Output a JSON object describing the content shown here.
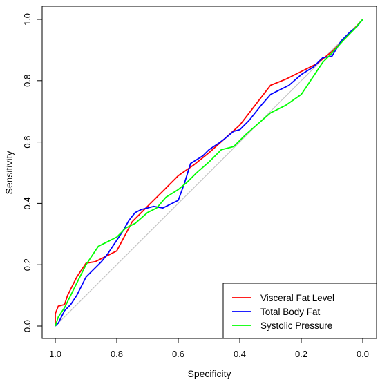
{
  "chart_data": {
    "type": "line",
    "title": "",
    "xlabel": "Specificity",
    "ylabel": "Sensitivity",
    "xlim": [
      1.0,
      0.0
    ],
    "ylim": [
      0.0,
      1.0
    ],
    "x_reversed": true,
    "x_ticks": [
      1.0,
      0.8,
      0.6,
      0.4,
      0.2,
      0.0
    ],
    "x_tick_labels": [
      "1.0",
      "0.8",
      "0.6",
      "0.4",
      "0.2",
      "0.0"
    ],
    "y_ticks": [
      0.0,
      0.2,
      0.4,
      0.6,
      0.8,
      1.0
    ],
    "y_tick_labels": [
      "0.0",
      "0.2",
      "0.4",
      "0.6",
      "0.8",
      "1.0"
    ],
    "grid": false,
    "legend_position": "bottom-right",
    "reference_line": {
      "from": [
        1.0,
        0.0
      ],
      "to": [
        0.0,
        1.0
      ],
      "color": "#bebebe"
    },
    "series": [
      {
        "name": "Visceral Fat Level",
        "color": "#ff0000",
        "points": [
          [
            1.0,
            0.0
          ],
          [
            1.0,
            0.04
          ],
          [
            0.99,
            0.065
          ],
          [
            0.97,
            0.07
          ],
          [
            0.96,
            0.1
          ],
          [
            0.93,
            0.16
          ],
          [
            0.9,
            0.205
          ],
          [
            0.87,
            0.21
          ],
          [
            0.85,
            0.22
          ],
          [
            0.8,
            0.245
          ],
          [
            0.75,
            0.34
          ],
          [
            0.7,
            0.39
          ],
          [
            0.65,
            0.44
          ],
          [
            0.6,
            0.49
          ],
          [
            0.55,
            0.525
          ],
          [
            0.5,
            0.565
          ],
          [
            0.45,
            0.61
          ],
          [
            0.4,
            0.655
          ],
          [
            0.35,
            0.72
          ],
          [
            0.3,
            0.785
          ],
          [
            0.25,
            0.805
          ],
          [
            0.2,
            0.83
          ],
          [
            0.15,
            0.855
          ],
          [
            0.1,
            0.895
          ],
          [
            0.05,
            0.945
          ],
          [
            0.0,
            1.0
          ]
        ]
      },
      {
        "name": "Total Body Fat",
        "color": "#0000ff",
        "points": [
          [
            1.0,
            0.0
          ],
          [
            0.99,
            0.01
          ],
          [
            0.98,
            0.03
          ],
          [
            0.97,
            0.05
          ],
          [
            0.95,
            0.07
          ],
          [
            0.93,
            0.1
          ],
          [
            0.9,
            0.16
          ],
          [
            0.88,
            0.18
          ],
          [
            0.85,
            0.21
          ],
          [
            0.83,
            0.235
          ],
          [
            0.8,
            0.28
          ],
          [
            0.78,
            0.31
          ],
          [
            0.76,
            0.345
          ],
          [
            0.74,
            0.37
          ],
          [
            0.72,
            0.38
          ],
          [
            0.7,
            0.385
          ],
          [
            0.68,
            0.39
          ],
          [
            0.65,
            0.385
          ],
          [
            0.6,
            0.41
          ],
          [
            0.58,
            0.465
          ],
          [
            0.56,
            0.53
          ],
          [
            0.52,
            0.555
          ],
          [
            0.5,
            0.575
          ],
          [
            0.47,
            0.595
          ],
          [
            0.45,
            0.61
          ],
          [
            0.42,
            0.635
          ],
          [
            0.4,
            0.64
          ],
          [
            0.37,
            0.67
          ],
          [
            0.33,
            0.72
          ],
          [
            0.3,
            0.755
          ],
          [
            0.27,
            0.77
          ],
          [
            0.24,
            0.785
          ],
          [
            0.2,
            0.82
          ],
          [
            0.16,
            0.845
          ],
          [
            0.13,
            0.875
          ],
          [
            0.1,
            0.88
          ],
          [
            0.07,
            0.93
          ],
          [
            0.04,
            0.96
          ],
          [
            0.02,
            0.975
          ],
          [
            0.0,
            1.0
          ]
        ]
      },
      {
        "name": "Systolic Pressure",
        "color": "#00ff00",
        "points": [
          [
            1.0,
            0.0
          ],
          [
            0.99,
            0.03
          ],
          [
            0.97,
            0.06
          ],
          [
            0.95,
            0.1
          ],
          [
            0.93,
            0.14
          ],
          [
            0.9,
            0.2
          ],
          [
            0.88,
            0.23
          ],
          [
            0.86,
            0.26
          ],
          [
            0.83,
            0.275
          ],
          [
            0.8,
            0.29
          ],
          [
            0.77,
            0.32
          ],
          [
            0.74,
            0.335
          ],
          [
            0.7,
            0.37
          ],
          [
            0.67,
            0.385
          ],
          [
            0.64,
            0.42
          ],
          [
            0.6,
            0.445
          ],
          [
            0.57,
            0.47
          ],
          [
            0.54,
            0.5
          ],
          [
            0.5,
            0.535
          ],
          [
            0.46,
            0.575
          ],
          [
            0.42,
            0.585
          ],
          [
            0.38,
            0.625
          ],
          [
            0.34,
            0.66
          ],
          [
            0.3,
            0.695
          ],
          [
            0.25,
            0.72
          ],
          [
            0.2,
            0.755
          ],
          [
            0.17,
            0.8
          ],
          [
            0.13,
            0.86
          ],
          [
            0.1,
            0.89
          ],
          [
            0.06,
            0.935
          ],
          [
            0.03,
            0.965
          ],
          [
            0.0,
            1.0
          ]
        ]
      }
    ]
  }
}
